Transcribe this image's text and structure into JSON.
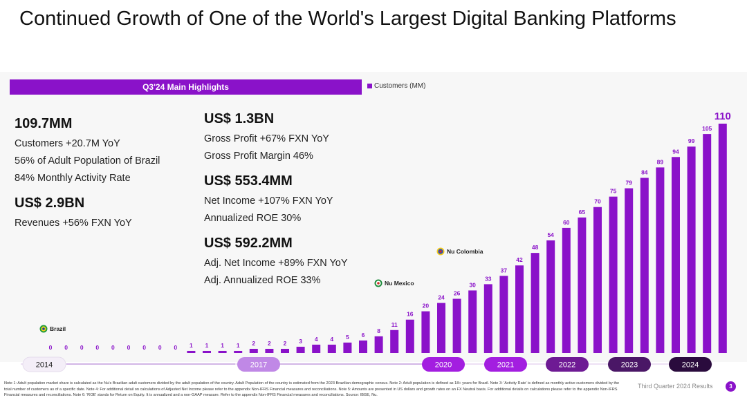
{
  "title": "Continued Growth of One of the World's Largest Digital Banking Platforms",
  "highlights_label": "Q3'24 Main Highlights",
  "legend_label": "Customers (MM)",
  "kpis_left": {
    "customers_big": "109.7MM",
    "customers_line1": "Customers +20.7M YoY",
    "customers_line2": "56% of Adult Population of Brazil",
    "customers_line3": "84% Monthly Activity Rate",
    "revenue_big": "US$ 2.9BN",
    "revenue_line1": "Revenues +56%  FXN YoY"
  },
  "kpis_right": {
    "gp_big": "US$ 1.3BN",
    "gp_line1": "Gross Profit +67%  FXN YoY",
    "gp_line2": "Gross Profit Margin 46%",
    "ni_big": "US$ 553.4MM",
    "ni_line1": "Net Income +107% FXN YoY",
    "ni_line2": "Annualized ROE 30%",
    "adj_big": "US$ 592.2MM",
    "adj_line1": "Adj. Net Income +89% FXN YoY",
    "adj_line2": "Adj. Annualized ROE 33%"
  },
  "chart_data": {
    "type": "bar",
    "series": [
      {
        "name": "Customers (MM)",
        "values": [
          0,
          0,
          0,
          0,
          0,
          0,
          0,
          0,
          0,
          1,
          1,
          1,
          1,
          2,
          2,
          2,
          3,
          4,
          4,
          5,
          6,
          8,
          11,
          16,
          20,
          24,
          26,
          30,
          33,
          37,
          42,
          48,
          54,
          60,
          65,
          70,
          75,
          79,
          84,
          89,
          94,
          99,
          105,
          110
        ]
      }
    ],
    "markers": [
      {
        "label": "Brazil",
        "index": 0
      },
      {
        "label": "Nu Mexico",
        "index": 22
      },
      {
        "label": "Nu Colombia",
        "index": 26
      }
    ],
    "year_labels": [
      {
        "label": "2014",
        "style": "light"
      },
      {
        "label": "2017",
        "style": "mid"
      },
      {
        "label": "2020",
        "style": "bright"
      },
      {
        "label": "2021",
        "style": "bright"
      },
      {
        "label": "2022",
        "style": "medium-dark"
      },
      {
        "label": "2023",
        "style": "dark"
      },
      {
        "label": "2024",
        "style": "darkest"
      }
    ],
    "colors": {
      "bar": "#8a12c9",
      "bar_faint": "#e4c9f3"
    }
  },
  "footnote_text": "Note 1: Adult population market share is calculated as the Nu's Brazilian adult customers divided by the adult population of the country. Adult Population of the country is estimated from the 2023 Brazilian demographic census. Note 2: Adult population is defined as 18+ years for Brazil. Note 3: 'Activity Rate' is defined as monthly active customers divided by the total number of customers as of a specific date. Note 4: For additional detail on calculations of Adjusted Net Income please refer to the appendix Non-IFRS Financial measures and reconciliations. Note 5: Amounts are presented in US dollars and growth rates on an FX Neutral basis. For additional details on calculations please refer to the appendix Non-IFRS Financial measures and reconciliations. Note 6: 'ROE' stands for Return on Equity. It is annualized and a non-GAAP measure. Refer to the appendix Non-IFRS Financial measures and reconciliations. Source: IBGE, Nu.",
  "footer_label": "Third Quarter 2024 Results",
  "page_number": "3"
}
